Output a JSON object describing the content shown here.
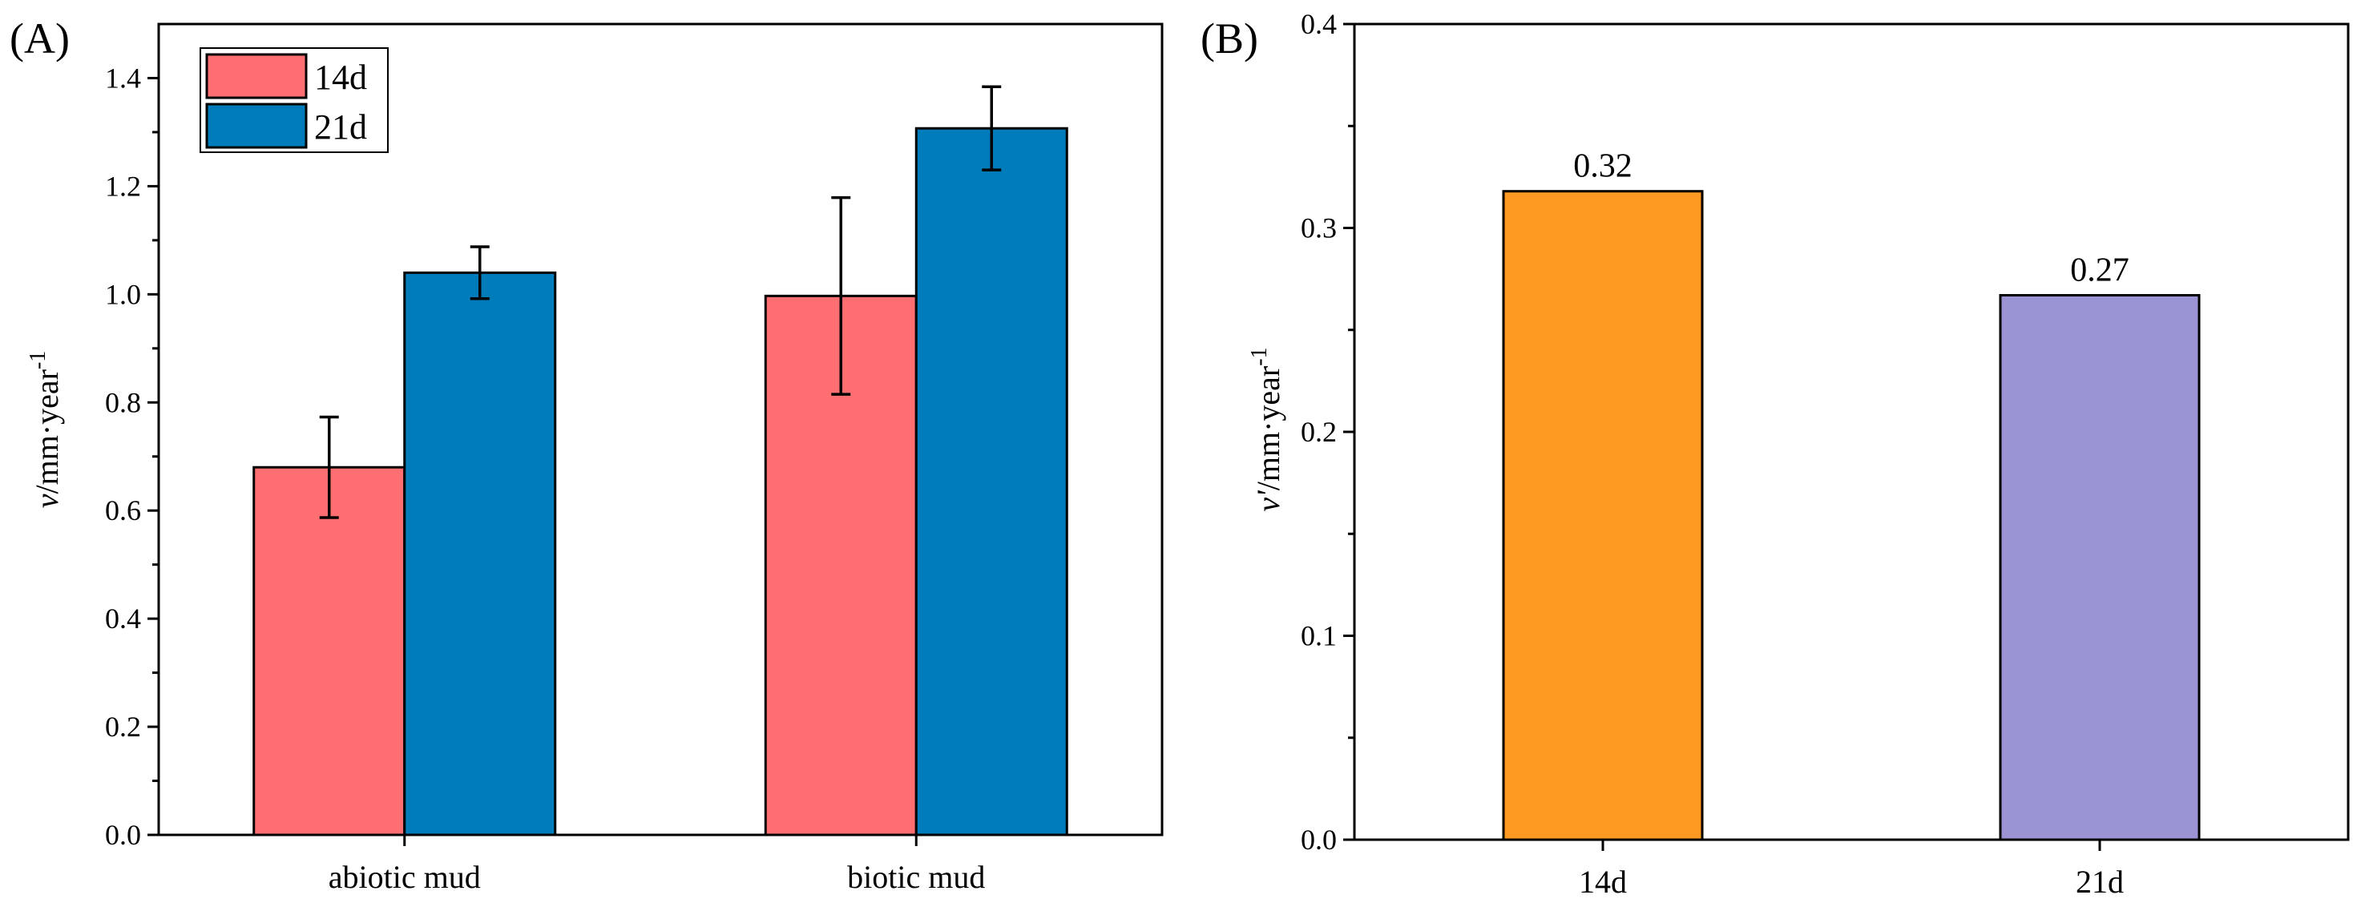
{
  "chart_data": [
    {
      "type": "bar",
      "panel_label": "(A)",
      "categories": [
        "abiotic mud",
        "biotic mud"
      ],
      "series": [
        {
          "name": "14d",
          "color": "#ff6f71",
          "values": [
            0.68,
            0.997
          ],
          "errors": [
            0.093,
            0.182
          ]
        },
        {
          "name": "21d",
          "color": "#017cbb",
          "values": [
            1.04,
            1.307
          ],
          "errors": [
            0.048,
            0.077
          ]
        }
      ],
      "ylabel_italic": "v",
      "ylabel_unit": "/mm·year",
      "ylabel_sup": "-1",
      "ylim": [
        0,
        1.5
      ],
      "yticks": [
        0.0,
        0.2,
        0.4,
        0.6,
        0.8,
        1.0,
        1.2,
        1.4
      ],
      "ytick_labels": [
        "0.0",
        "0.2",
        "0.4",
        "0.6",
        "0.8",
        "1.0",
        "1.2",
        "1.4"
      ],
      "legend_position": "top-left"
    },
    {
      "type": "bar",
      "panel_label": "(B)",
      "categories": [
        "14d",
        "21d"
      ],
      "values": [
        0.318,
        0.267
      ],
      "colors": [
        "#fe9a22",
        "#9a94d4"
      ],
      "data_labels": [
        "0.32",
        "0.27"
      ],
      "ylabel_italic": "v'",
      "ylabel_unit": "/mm·year",
      "ylabel_sup": "-1",
      "ylim": [
        0,
        0.4
      ],
      "yticks": [
        0.0,
        0.1,
        0.2,
        0.3,
        0.4
      ],
      "ytick_labels": [
        "0.0",
        "0.1",
        "0.2",
        "0.3",
        "0.4"
      ]
    }
  ]
}
